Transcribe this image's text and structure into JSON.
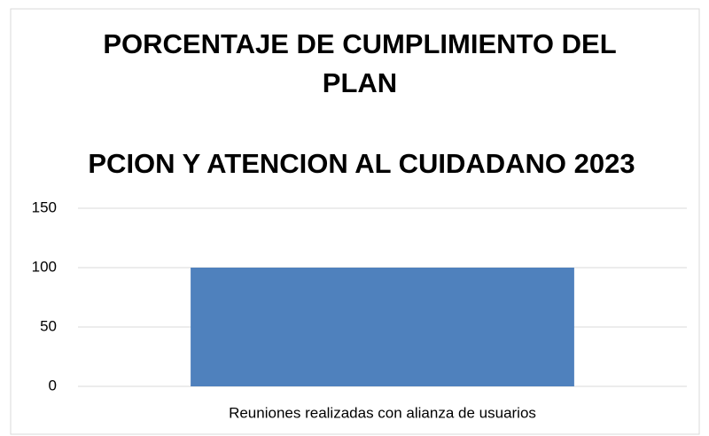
{
  "chart_data": {
    "type": "bar",
    "title": [
      "PORCENTAJE DE CUMPLIMIENTO DEL",
      "PLAN",
      "PCION Y ATENCION AL CUIDADANO 2023"
    ],
    "categories": [
      "Reuniones realizadas con alianza de usuarios"
    ],
    "values": [
      100
    ],
    "color": "#4f81bd",
    "ylim": [
      0,
      150
    ],
    "yticks": [
      0,
      50,
      100,
      150
    ],
    "grid": true
  }
}
